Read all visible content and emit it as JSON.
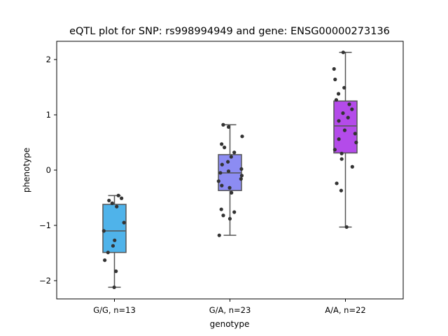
{
  "chart_data": {
    "type": "box",
    "title": "eQTL plot for SNP: rs998994949 and gene: ENSG00000273136",
    "xlabel": "genotype",
    "ylabel": "phenotype",
    "categories": [
      "G/G, n=13",
      "G/A, n=23",
      "A/A, n=22"
    ],
    "ylim": [
      -2.33,
      2.33
    ],
    "yticks": [
      -2,
      -1,
      0,
      1,
      2
    ],
    "ytick_labels": [
      "−2",
      "−1",
      "0",
      "1",
      "2"
    ],
    "grid": false,
    "legend": "none",
    "box_colors": [
      "#4fb3ea",
      "#8c8cf3",
      "#b44bea"
    ],
    "box_edge_color": "#555555",
    "point_color": "#333333",
    "boxes": [
      {
        "category": "G/G, n=13",
        "whisker_low": -2.12,
        "q1": -1.49,
        "median": -1.1,
        "q3": -0.62,
        "whisker_high": -0.46
      },
      {
        "category": "G/A, n=23",
        "whisker_low": -1.18,
        "q1": -0.37,
        "median": -0.05,
        "q3": 0.28,
        "whisker_high": 0.82
      },
      {
        "category": "A/A, n=22",
        "whisker_low": -1.03,
        "q1": 0.31,
        "median": 0.8,
        "q3": 1.25,
        "whisker_high": 2.13
      }
    ],
    "points": [
      {
        "category": "G/G, n=13",
        "values": [
          -2.12,
          -1.83,
          -1.63,
          -1.49,
          -1.37,
          -1.27,
          -1.1,
          -0.95,
          -0.66,
          -0.6,
          -0.55,
          -0.51,
          -0.46
        ]
      },
      {
        "category": "G/A, n=23",
        "values": [
          -1.18,
          -0.88,
          -0.82,
          -0.76,
          -0.71,
          -0.41,
          -0.32,
          -0.28,
          -0.2,
          -0.16,
          -0.1,
          -0.05,
          -0.02,
          0.02,
          0.1,
          0.15,
          0.24,
          0.32,
          0.41,
          0.47,
          0.61,
          0.78,
          0.82
        ]
      },
      {
        "category": "A/A, n=22",
        "values": [
          -1.03,
          -0.37,
          -0.24,
          0.06,
          0.2,
          0.3,
          0.37,
          0.5,
          0.56,
          0.66,
          0.72,
          0.89,
          0.95,
          1.03,
          1.1,
          1.19,
          1.27,
          1.38,
          1.49,
          1.64,
          1.83,
          2.13
        ]
      }
    ]
  }
}
